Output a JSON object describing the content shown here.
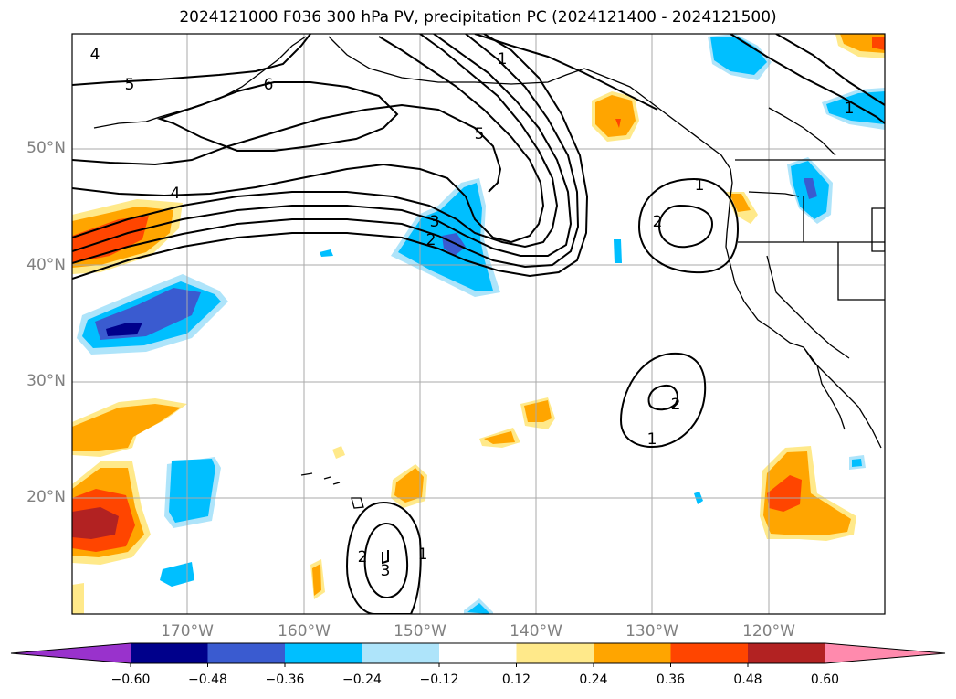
{
  "title": "2024121000 F036 300 hPa PV, precipitation PC (2024121400 - 2024121500)",
  "lat_labels": [
    "50°N",
    "40°N",
    "30°N",
    "20°N"
  ],
  "lon_labels": [
    "170°W",
    "160°W",
    "150°W",
    "140°W",
    "130°W",
    "120°W"
  ],
  "colorbar": {
    "colors": [
      "#9932cc",
      "#00008b",
      "#3a5bd0",
      "#00bfff",
      "#aee4fa",
      "#ffffff",
      "#ffe98a",
      "#ffa500",
      "#ff4500",
      "#b22222",
      "#ff8aad"
    ],
    "tick_labels": [
      "−0.60",
      "−0.48",
      "−0.36",
      "−0.24",
      "−0.12",
      "0.12",
      "0.24",
      "0.36",
      "0.48",
      "0.60"
    ]
  },
  "contour_labels": [
    "1",
    "1",
    "1",
    "1",
    "2",
    "2",
    "2",
    "2",
    "3",
    "3",
    "4",
    "4",
    "5",
    "5",
    "6"
  ]
}
